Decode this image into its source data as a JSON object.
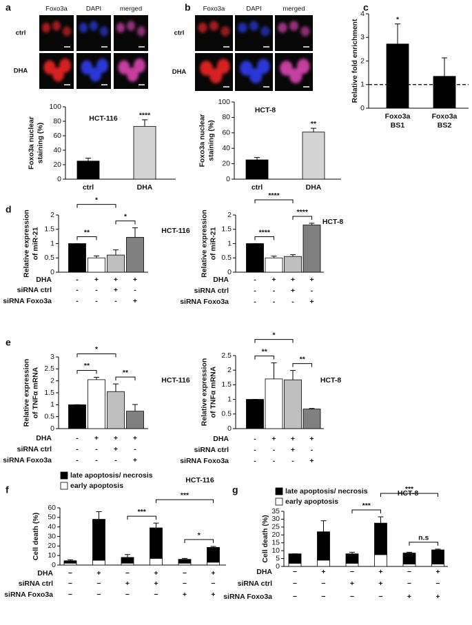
{
  "micrographs": [
    {
      "panel": "a",
      "columns": [
        "Foxo3a",
        "DAPI",
        "merged"
      ],
      "rows": [
        "ctrl",
        "DHA"
      ]
    },
    {
      "panel": "b",
      "columns": [
        "Foxo3a",
        "DAPI",
        "merged"
      ],
      "rows": [
        "ctrl",
        "DHA"
      ]
    }
  ],
  "chart_data": [
    {
      "type": "bar",
      "title": "HCT-116",
      "categories": [
        "ctrl",
        "DHA"
      ],
      "values": [
        25,
        73
      ],
      "errors": [
        4,
        9
      ],
      "colors": [
        "#000000",
        "#d3d3d3"
      ],
      "significance": [
        null,
        "****"
      ],
      "ylabel": [
        "Foxo3a nuclear",
        "staining (%)"
      ],
      "ylim": [
        0,
        100
      ],
      "yticks": [
        0,
        20,
        40,
        60,
        80,
        100
      ]
    },
    {
      "type": "bar",
      "title": "HCT-8",
      "categories": [
        "ctrl",
        "DHA"
      ],
      "values": [
        25,
        61
      ],
      "errors": [
        3,
        5
      ],
      "colors": [
        "#000000",
        "#d3d3d3"
      ],
      "significance": [
        null,
        "**"
      ],
      "ylabel": [
        "Foxo3a nuclear",
        "staining (%)"
      ],
      "ylim": [
        0,
        100
      ],
      "yticks": [
        0,
        20,
        40,
        60,
        80,
        100
      ]
    },
    {
      "type": "bar",
      "panel": "c",
      "categories": [
        [
          "Foxo3a",
          "BS1"
        ],
        [
          "Foxo3a",
          "BS2"
        ]
      ],
      "values": [
        2.72,
        1.35
      ],
      "errors": [
        0.85,
        0.78
      ],
      "colors": [
        "#000000",
        "#000000"
      ],
      "significance": [
        "*",
        null
      ],
      "ylabel": [
        "Relative fold enrichment"
      ],
      "ylim": [
        0,
        4
      ],
      "yticks": [
        0,
        1,
        2,
        3,
        4
      ],
      "reference_line": 1
    },
    {
      "type": "bar",
      "panel": "d",
      "title": "HCT-116",
      "values": [
        1,
        0.5,
        0.6,
        1.22
      ],
      "errors": [
        0,
        0.07,
        0.18,
        0.33
      ],
      "colors": [
        "#000000",
        "#ffffff",
        "#bfbfbf",
        "#808080"
      ],
      "ylabel": [
        "Relative expression",
        "of miR-21"
      ],
      "ylim": [
        0,
        2
      ],
      "yticks": [
        0,
        0.5,
        1,
        1.5,
        2
      ],
      "conditions": [
        {
          "name": "DHA",
          "values": [
            "-",
            "+",
            "+",
            "+"
          ]
        },
        {
          "name": "siRNA ctrl",
          "values": [
            "-",
            "-",
            "+",
            "-"
          ]
        },
        {
          "name": "siRNA Foxo3a",
          "values": [
            "-",
            "-",
            "-",
            "+"
          ]
        }
      ],
      "comparisons": [
        {
          "between": [
            0,
            1
          ],
          "label": "**"
        },
        {
          "between": [
            0,
            2
          ],
          "label": "*"
        },
        {
          "between": [
            2,
            3
          ],
          "label": "*"
        }
      ]
    },
    {
      "type": "bar",
      "title": "HCT-8",
      "values": [
        1,
        0.5,
        0.55,
        1.65
      ],
      "errors": [
        0,
        0.06,
        0.06,
        0.06
      ],
      "colors": [
        "#000000",
        "#ffffff",
        "#bfbfbf",
        "#808080"
      ],
      "ylabel": [
        "Relative expression",
        "of miR-21"
      ],
      "ylim": [
        0,
        2
      ],
      "yticks": [
        0,
        0.5,
        1,
        1.5,
        2
      ],
      "conditions": [
        {
          "name": "DHA",
          "values": [
            "-",
            "+",
            "+",
            "+"
          ]
        },
        {
          "name": "siRNA ctrl",
          "values": [
            "-",
            "-",
            "+",
            "-"
          ]
        },
        {
          "name": "siRNA Foxo3a",
          "values": [
            "-",
            "-",
            "-",
            "+"
          ]
        }
      ],
      "comparisons": [
        {
          "between": [
            0,
            1
          ],
          "label": "****"
        },
        {
          "between": [
            0,
            2
          ],
          "label": "****"
        },
        {
          "between": [
            2,
            3
          ],
          "label": "****"
        }
      ]
    },
    {
      "type": "bar",
      "panel": "e",
      "title": "HCT-116",
      "values": [
        1,
        2.05,
        1.55,
        0.73
      ],
      "errors": [
        0,
        0.1,
        0.32,
        0.28
      ],
      "colors": [
        "#000000",
        "#ffffff",
        "#bfbfbf",
        "#808080"
      ],
      "ylabel": [
        "Relative expression",
        "of TNFα mRNA"
      ],
      "ylim": [
        0,
        3
      ],
      "yticks": [
        0,
        0.5,
        1,
        1.5,
        2,
        2.5,
        3
      ],
      "conditions": [
        {
          "name": "DHA",
          "values": [
            "-",
            "+",
            "+",
            "+"
          ]
        },
        {
          "name": "siRNA ctrl",
          "values": [
            "-",
            "-",
            "+",
            "-"
          ]
        },
        {
          "name": "siRNA Foxo3a",
          "values": [
            "-",
            "-",
            "-",
            "+"
          ]
        }
      ],
      "comparisons": [
        {
          "between": [
            0,
            1
          ],
          "label": "**"
        },
        {
          "between": [
            0,
            2
          ],
          "label": "*"
        },
        {
          "between": [
            2,
            3
          ],
          "label": "**"
        }
      ]
    },
    {
      "type": "bar",
      "title": "HCT-8",
      "values": [
        1,
        1.7,
        1.67,
        0.67
      ],
      "errors": [
        0,
        0.55,
        0.32,
        0.02
      ],
      "colors": [
        "#000000",
        "#ffffff",
        "#bfbfbf",
        "#808080"
      ],
      "ylabel": [
        "Relative expression",
        "of TNFα mRNA"
      ],
      "ylim": [
        0,
        2.5
      ],
      "yticks": [
        0,
        0.5,
        1,
        1.5,
        2,
        2.5
      ],
      "conditions": [
        {
          "name": "DHA",
          "values": [
            "-",
            "+",
            "+",
            "+"
          ]
        },
        {
          "name": "siRNA ctrl",
          "values": [
            "-",
            "-",
            "+",
            "-"
          ]
        },
        {
          "name": "siRNA Foxo3a",
          "values": [
            "-",
            "-",
            "-",
            "+"
          ]
        }
      ],
      "comparisons": [
        {
          "between": [
            0,
            1
          ],
          "label": "**"
        },
        {
          "between": [
            0,
            2
          ],
          "label": "*"
        },
        {
          "between": [
            2,
            3
          ],
          "label": "**"
        }
      ]
    },
    {
      "type": "stacked_bar",
      "panel": "f",
      "title": "HCT-116",
      "series": [
        {
          "name": "late apoptosis/ necrosis",
          "color": "#000000",
          "values": [
            2.5,
            43,
            6,
            32,
            4,
            15.5
          ]
        },
        {
          "name": "early apoptosis",
          "color": "#ffffff",
          "values": [
            2,
            5,
            2,
            7,
            2,
            3
          ]
        }
      ],
      "errors": [
        1,
        8,
        3,
        5,
        1,
        1
      ],
      "ylabel": [
        "Cell death (%)"
      ],
      "ylim": [
        0,
        60
      ],
      "yticks": [
        0,
        10,
        20,
        30,
        40,
        50,
        60
      ],
      "conditions": [
        {
          "name": "DHA",
          "values": [
            "−",
            "+",
            "−",
            "+",
            "−",
            "+"
          ]
        },
        {
          "name": "siRNA ctrl",
          "values": [
            "−",
            "−",
            "+",
            "+",
            "−",
            "−"
          ]
        },
        {
          "name": "siRNA Foxo3a",
          "values": [
            "−",
            "−",
            "−",
            "−",
            "+",
            "+"
          ]
        }
      ],
      "comparisons": [
        {
          "between": [
            2,
            3
          ],
          "label": "***"
        },
        {
          "between": [
            3,
            5
          ],
          "label": "***"
        },
        {
          "between": [
            4,
            5
          ],
          "label": "*"
        }
      ]
    },
    {
      "type": "stacked_bar",
      "panel": "g",
      "title": "HCT-8",
      "series": [
        {
          "name": "late apoptosis/ necrosis",
          "color": "#000000",
          "values": [
            6,
            18,
            6,
            20,
            7,
            9
          ]
        },
        {
          "name": "early apoptosis",
          "color": "#ffffff",
          "values": [
            2,
            4,
            2,
            7.5,
            1.5,
            1.5
          ]
        }
      ],
      "errors": [
        0,
        7,
        1,
        4,
        0.5,
        0.5
      ],
      "ylabel": [
        "Cell death (%)"
      ],
      "ylim": [
        0,
        35
      ],
      "yticks": [
        0,
        5,
        10,
        15,
        20,
        25,
        30,
        35
      ],
      "conditions": [
        {
          "name": "DHA",
          "values": [
            "−",
            "+",
            "−",
            "+",
            "−",
            "+"
          ]
        },
        {
          "name": "siRNA ctrl",
          "values": [
            "−",
            "−",
            "+",
            "+",
            "−",
            "−"
          ]
        },
        {
          "name": "siRNA Foxo3a",
          "values": [
            "−",
            "−",
            "−",
            "−",
            "+",
            "+"
          ]
        }
      ],
      "comparisons": [
        {
          "between": [
            2,
            3
          ],
          "label": "***"
        },
        {
          "between": [
            3,
            5
          ],
          "label": "***"
        },
        {
          "between": [
            4,
            5
          ],
          "label": "n.s"
        }
      ]
    }
  ]
}
